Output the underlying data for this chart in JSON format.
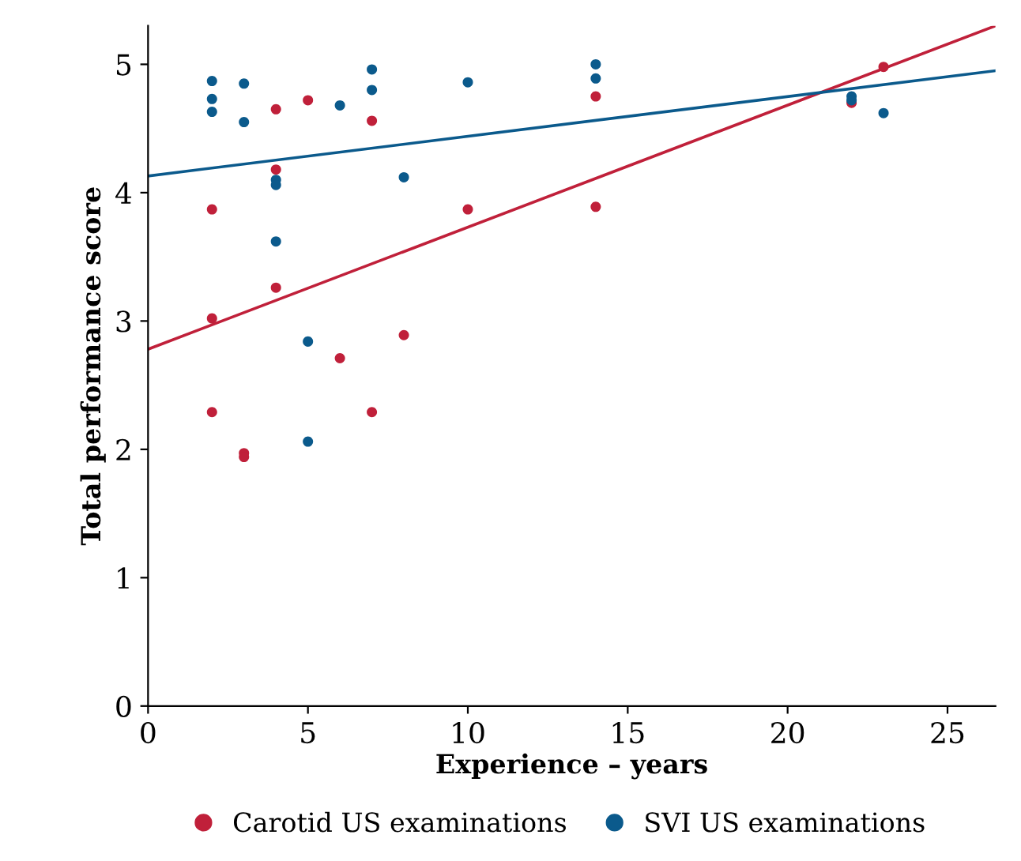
{
  "chart_data": {
    "type": "scatter",
    "xlabel": "Experience – years",
    "ylabel": "Total performance score",
    "xlim": [
      0,
      26.5
    ],
    "ylim": [
      0,
      5.3
    ],
    "xticks": [
      0,
      5,
      10,
      15,
      20,
      25
    ],
    "yticks": [
      0,
      1,
      2,
      3,
      4,
      5
    ],
    "grid": false,
    "legend": "bottom",
    "marker": "circle",
    "series": [
      {
        "name": "Carotid US examinations",
        "color": "#c0203a",
        "x": [
          2,
          2,
          2,
          3,
          3,
          4,
          4,
          4,
          5,
          6,
          7,
          7,
          8,
          10,
          14,
          14,
          22,
          23
        ],
        "values": [
          3.87,
          3.02,
          2.29,
          1.97,
          1.94,
          4.65,
          4.18,
          3.26,
          4.72,
          2.71,
          4.56,
          2.29,
          2.89,
          3.87,
          4.75,
          3.89,
          4.7,
          4.98
        ]
      },
      {
        "name": "SVI US examinations",
        "color": "#0b5a8c",
        "x": [
          2,
          2,
          2,
          3,
          3,
          4,
          4,
          4,
          5,
          5,
          6,
          7,
          7,
          8,
          10,
          14,
          14,
          22,
          22,
          23
        ],
        "values": [
          4.87,
          4.73,
          4.63,
          4.85,
          4.55,
          4.1,
          4.06,
          3.62,
          2.84,
          2.06,
          4.68,
          4.96,
          4.8,
          4.12,
          4.86,
          5.0,
          4.89,
          4.75,
          4.72,
          4.62
        ]
      },
      {
        "type": "line",
        "color": "#c0203a",
        "x": [
          0,
          26.5
        ],
        "values": [
          2.78,
          5.3
        ],
        "line_style": "solid",
        "marker": "none"
      },
      {
        "type": "line",
        "color": "#0b5a8c",
        "x": [
          0,
          26.5
        ],
        "values": [
          4.13,
          4.95
        ],
        "line_style": "solid",
        "marker": "none"
      }
    ]
  }
}
